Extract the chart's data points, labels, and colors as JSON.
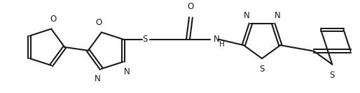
{
  "bg_color": "#ffffff",
  "line_color": "#1a1a1a",
  "line_width": 1.5,
  "font_size": 8.5,
  "figsize": [
    5.14,
    1.34
  ],
  "dpi": 100,
  "xlim": [
    0,
    514
  ],
  "ylim": [
    0,
    134
  ]
}
